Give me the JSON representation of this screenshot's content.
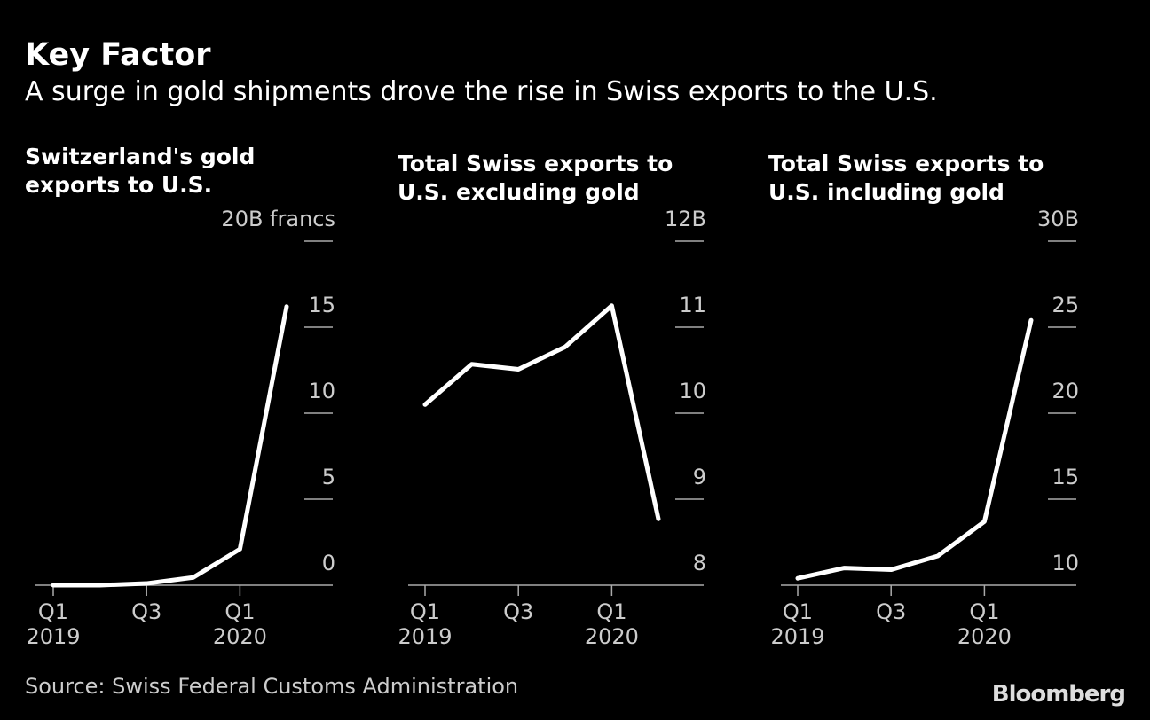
{
  "header": {
    "title": "Key Factor",
    "subtitle": "A surge in gold shipments drove the rise in Swiss exports to the U.S."
  },
  "footer": {
    "source": "Source: Swiss Federal Customs Administration",
    "logo": "Bloomberg"
  },
  "chart_data": [
    {
      "type": "line",
      "title": [
        "Switzerland's gold",
        "exports to U.S."
      ],
      "unit_label": "20B francs",
      "x": [
        "Q1 2019",
        "Q2 2019",
        "Q3 2019",
        "Q4 2019",
        "Q1 2020",
        "Q2 2020"
      ],
      "values": [
        0.0,
        0.0,
        0.1,
        0.45,
        2.1,
        16.2
      ],
      "ylim": [
        0,
        20
      ],
      "yticks": [
        0,
        5,
        10,
        15,
        20
      ],
      "ytick_labels": [
        "0",
        "5",
        "10",
        "15",
        "20B francs"
      ],
      "xtick_labels": [
        [
          "Q1",
          "2019"
        ],
        [
          "Q3",
          ""
        ],
        [
          "Q1",
          "2020"
        ]
      ],
      "color": "#ffffff"
    },
    {
      "type": "line",
      "title": [
        "Total Swiss exports to",
        "U.S. excluding gold"
      ],
      "x": [
        "Q1 2019",
        "Q2 2019",
        "Q3 2019",
        "Q4 2019",
        "Q1 2020",
        "Q2 2020"
      ],
      "values": [
        10.1,
        10.57,
        10.51,
        10.77,
        11.25,
        8.77
      ],
      "ylim": [
        8,
        12
      ],
      "yticks": [
        8,
        9,
        10,
        11,
        12
      ],
      "ytick_labels": [
        "8",
        "9",
        "10",
        "11",
        "12B"
      ],
      "xtick_labels": [
        [
          "Q1",
          "2019"
        ],
        [
          "Q3",
          ""
        ],
        [
          "Q1",
          "2020"
        ]
      ],
      "color": "#ffffff"
    },
    {
      "type": "line",
      "title": [
        "Total Swiss exports to",
        "U.S. including gold"
      ],
      "x": [
        "Q1 2019",
        "Q2 2019",
        "Q3 2019",
        "Q4 2019",
        "Q1 2020",
        "Q2 2020"
      ],
      "values": [
        10.4,
        11.0,
        10.9,
        11.7,
        13.7,
        25.4
      ],
      "ylim": [
        10,
        30
      ],
      "yticks": [
        10,
        15,
        20,
        25,
        30
      ],
      "ytick_labels": [
        "10",
        "15",
        "20",
        "25",
        "30B"
      ],
      "xtick_labels": [
        [
          "Q1",
          "2019"
        ],
        [
          "Q3",
          ""
        ],
        [
          "Q1",
          "2020"
        ]
      ],
      "color": "#ffffff"
    }
  ]
}
